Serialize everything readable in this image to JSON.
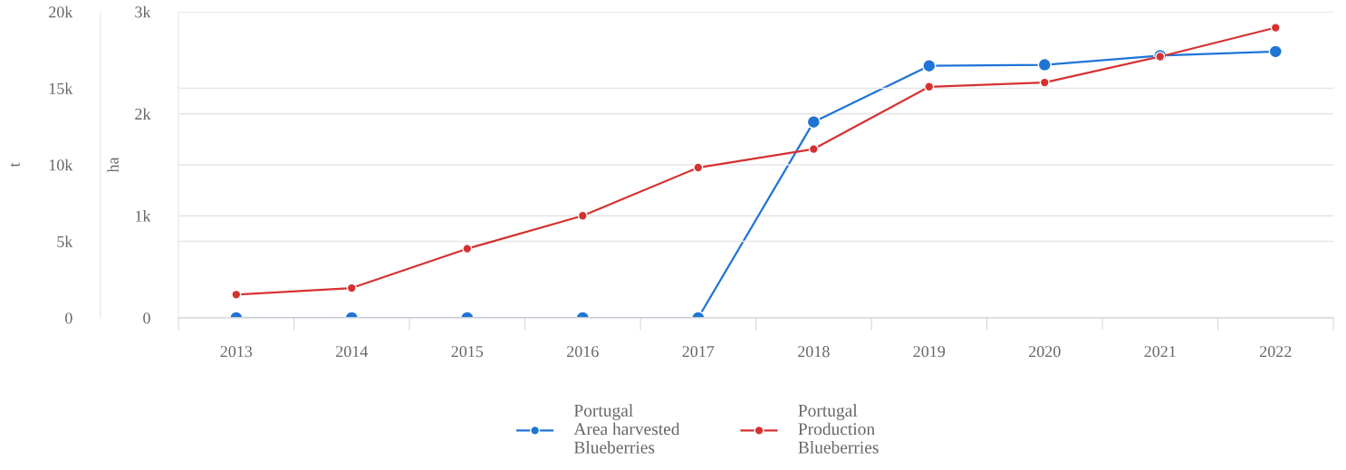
{
  "chart_data": {
    "type": "line",
    "categories": [
      "2013",
      "2014",
      "2015",
      "2016",
      "2017",
      "2018",
      "2019",
      "2020",
      "2021",
      "2022"
    ],
    "ylabel": "t",
    "y2label": "ha",
    "ylim": [
      0,
      20000
    ],
    "yticks": [
      0,
      {
        "value": 5000,
        "label": "5k"
      },
      {
        "value": 10000,
        "label": "10k"
      },
      {
        "value": 15000,
        "label": "15k"
      },
      {
        "value": 20000,
        "label": "20k"
      }
    ],
    "y2lim": [
      0,
      3000
    ],
    "y2ticks": [
      0,
      {
        "value": 1000,
        "label": "1k"
      },
      {
        "value": 2000,
        "label": "2k"
      },
      {
        "value": 3000,
        "label": "3k"
      }
    ],
    "series": [
      {
        "name": "Portugal\nArea harvested\nBlueberries",
        "color": "#1f74d6",
        "axis": "y2",
        "values": [
          0,
          0,
          0,
          0,
          0,
          1920,
          2470,
          2480,
          2570,
          2610
        ]
      },
      {
        "name": "Portugal\nProduction\nBlueberries",
        "color": "#d63131",
        "axis": "y",
        "values": [
          1520,
          1950,
          4520,
          6670,
          9820,
          11030,
          15100,
          15380,
          17070,
          18960
        ]
      }
    ],
    "grid": "y",
    "legend": "bottom",
    "marker": "circle",
    "line_style": "solid"
  }
}
